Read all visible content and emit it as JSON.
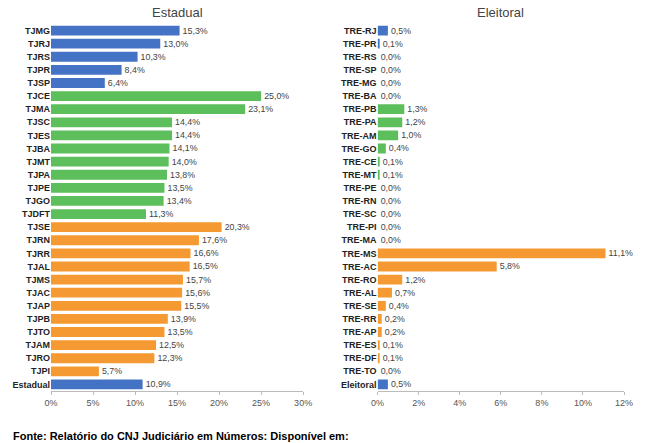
{
  "chart_data": [
    {
      "type": "bar",
      "title": "Estadual",
      "orientation": "horizontal",
      "data_labels": true,
      "grid": false,
      "categories": [
        "TJMG",
        "TJRJ",
        "TJRS",
        "TJPR",
        "TJSP",
        "TJCE",
        "TJMA",
        "TJSC",
        "TJES",
        "TJBA",
        "TJMT",
        "TJPA",
        "TJPE",
        "TJGO",
        "TJDFT",
        "TJSE",
        "TJRN",
        "TJRR",
        "TJAL",
        "TJMS",
        "TJAC",
        "TJAP",
        "TJPB",
        "TJTO",
        "TJAM",
        "TJRO",
        "TJPI",
        "Estadual"
      ],
      "values": [
        15.3,
        13.0,
        10.3,
        8.4,
        6.4,
        25.0,
        23.1,
        14.4,
        14.4,
        14.1,
        14.0,
        13.8,
        13.5,
        13.4,
        11.3,
        20.3,
        17.6,
        16.6,
        16.5,
        15.7,
        15.6,
        15.5,
        13.9,
        13.5,
        12.5,
        12.3,
        5.7,
        10.9
      ],
      "value_labels": [
        "15,3%",
        "13,0%",
        "10,3%",
        "8,4%",
        "6,4%",
        "25,0%",
        "23,1%",
        "14,4%",
        "14,4%",
        "14,1%",
        "14,0%",
        "13,8%",
        "13,5%",
        "13,4%",
        "11,3%",
        "20,3%",
        "17,6%",
        "16,6%",
        "16,5%",
        "15,7%",
        "15,6%",
        "15,5%",
        "13,9%",
        "13,5%",
        "12,5%",
        "12,3%",
        "5,7%",
        "10,9%"
      ],
      "colors": [
        "#4472c4",
        "#4472c4",
        "#4472c4",
        "#4472c4",
        "#4472c4",
        "#5cbf5c",
        "#5cbf5c",
        "#5cbf5c",
        "#5cbf5c",
        "#5cbf5c",
        "#5cbf5c",
        "#5cbf5c",
        "#5cbf5c",
        "#5cbf5c",
        "#5cbf5c",
        "#f59a32",
        "#f59a32",
        "#f59a32",
        "#f59a32",
        "#f59a32",
        "#f59a32",
        "#f59a32",
        "#f59a32",
        "#f59a32",
        "#f59a32",
        "#f59a32",
        "#f59a32",
        "#4472c4"
      ],
      "xlim": [
        0,
        30
      ],
      "xticks": [
        {
          "value": 0,
          "label": "0%"
        },
        {
          "value": 5,
          "label": "5%"
        },
        {
          "value": 10,
          "label": "10%"
        },
        {
          "value": 15,
          "label": "15%"
        },
        {
          "value": 20,
          "label": "20%"
        },
        {
          "value": 25,
          "label": "25%"
        },
        {
          "value": 30,
          "label": "30%"
        }
      ]
    },
    {
      "type": "bar",
      "title": "Eleitoral",
      "orientation": "horizontal",
      "data_labels": true,
      "grid": false,
      "categories": [
        "TRE-RJ",
        "TRE-PR",
        "TRE-RS",
        "TRE-SP",
        "TRE-MG",
        "TRE-BA",
        "TRE-PB",
        "TRE-PA",
        "TRE-AM",
        "TRE-GO",
        "TRE-CE",
        "TRE-MT",
        "TRE-PE",
        "TRE-RN",
        "TRE-SC",
        "TRE-PI",
        "TRE-MA",
        "TRE-MS",
        "TRE-AC",
        "TRE-RO",
        "TRE-AL",
        "TRE-SE",
        "TRE-RR",
        "TRE-AP",
        "TRE-ES",
        "TRE-DF",
        "TRE-TO",
        "Eleitoral"
      ],
      "values": [
        0.5,
        0.1,
        0.0,
        0.0,
        0.0,
        0.0,
        1.3,
        1.2,
        1.0,
        0.4,
        0.1,
        0.1,
        0.0,
        0.0,
        0.0,
        0.0,
        0.0,
        11.1,
        5.8,
        1.2,
        0.7,
        0.4,
        0.2,
        0.2,
        0.1,
        0.1,
        0.0,
        0.5
      ],
      "value_labels": [
        "0,5%",
        "0,1%",
        "0,0%",
        "0,0%",
        "0,0%",
        "0,0%",
        "1,3%",
        "1,2%",
        "1,0%",
        "0,4%",
        "0,1%",
        "0,1%",
        "0,0%",
        "0,0%",
        "0,0%",
        "0,0%",
        "0,0%",
        "11,1%",
        "5,8%",
        "1,2%",
        "0,7%",
        "0,4%",
        "0,2%",
        "0,2%",
        "0,1%",
        "0,1%",
        "0,0%",
        "0,5%"
      ],
      "colors": [
        "#4472c4",
        "#4472c4",
        "#4472c4",
        "#4472c4",
        "#4472c4",
        "#4472c4",
        "#5cbf5c",
        "#5cbf5c",
        "#5cbf5c",
        "#5cbf5c",
        "#5cbf5c",
        "#5cbf5c",
        "#5cbf5c",
        "#5cbf5c",
        "#5cbf5c",
        "#5cbf5c",
        "#5cbf5c",
        "#f59a32",
        "#f59a32",
        "#f59a32",
        "#f59a32",
        "#f59a32",
        "#f59a32",
        "#f59a32",
        "#f59a32",
        "#f59a32",
        "#f59a32",
        "#4472c4"
      ],
      "xlim": [
        0,
        12
      ],
      "xticks": [
        {
          "value": 0,
          "label": "0%"
        },
        {
          "value": 2,
          "label": "2%"
        },
        {
          "value": 4,
          "label": "4%"
        },
        {
          "value": 6,
          "label": "6%"
        },
        {
          "value": 8,
          "label": "8%"
        },
        {
          "value": 10,
          "label": "10%"
        },
        {
          "value": 12,
          "label": "12%"
        }
      ]
    }
  ],
  "caption": "Fonte: Relatório do CNJ Judiciário em Números: Disponível em:"
}
